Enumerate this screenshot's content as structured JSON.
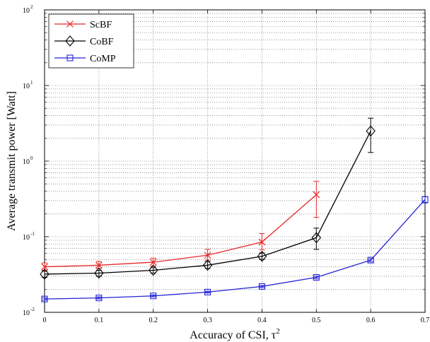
{
  "chart_data": {
    "type": "line",
    "xlabel": "Accuracy of CSI, τ²",
    "xlabel_main": "Accuracy of CSI, τ",
    "xlabel_sup": "2",
    "ylabel": "Average transmit power [Watt]",
    "xlim": [
      0,
      0.7
    ],
    "ylim": [
      0.01,
      100
    ],
    "yscale": "log",
    "grid": true,
    "legend_position": "top-left",
    "x_ticks": [
      "0",
      "0.1",
      "0.2",
      "0.3",
      "0.4",
      "0.5",
      "0.6",
      "0.7"
    ],
    "y_ticks": [
      {
        "base": "10",
        "exp": "-2"
      },
      {
        "base": "10",
        "exp": "-1"
      },
      {
        "base": "10",
        "exp": "0"
      },
      {
        "base": "10",
        "exp": "1"
      },
      {
        "base": "10",
        "exp": "2"
      }
    ],
    "series": [
      {
        "name": "ScBF",
        "color": "#e8282a",
        "marker": "x",
        "x": [
          0,
          0.1,
          0.2,
          0.3,
          0.4,
          0.5
        ],
        "y": [
          0.04,
          0.042,
          0.046,
          0.057,
          0.085,
          0.36
        ],
        "err_low": [
          0.036,
          0.038,
          0.041,
          0.049,
          0.067,
          0.18
        ],
        "err_high": [
          0.045,
          0.047,
          0.052,
          0.068,
          0.11,
          0.54
        ]
      },
      {
        "name": "CoBF",
        "color": "#000000",
        "marker": "diamond",
        "x": [
          0,
          0.1,
          0.2,
          0.3,
          0.4,
          0.5,
          0.6
        ],
        "y": [
          0.032,
          0.033,
          0.036,
          0.042,
          0.055,
          0.097,
          2.5
        ],
        "err_low": [
          0.029,
          0.03,
          0.033,
          0.038,
          0.05,
          0.068,
          1.3
        ],
        "err_high": [
          0.035,
          0.036,
          0.039,
          0.047,
          0.061,
          0.13,
          3.7
        ]
      },
      {
        "name": "CoMP",
        "color": "#2323d6",
        "marker": "square",
        "x": [
          0,
          0.1,
          0.2,
          0.3,
          0.4,
          0.5,
          0.6,
          0.7
        ],
        "y": [
          0.015,
          0.0155,
          0.0165,
          0.0185,
          0.022,
          0.029,
          0.049,
          0.31
        ],
        "err_low": [
          0.0145,
          0.015,
          0.016,
          0.018,
          0.0213,
          0.028,
          0.047,
          0.28
        ],
        "err_high": [
          0.0155,
          0.016,
          0.017,
          0.019,
          0.0227,
          0.03,
          0.051,
          0.34
        ]
      }
    ]
  }
}
